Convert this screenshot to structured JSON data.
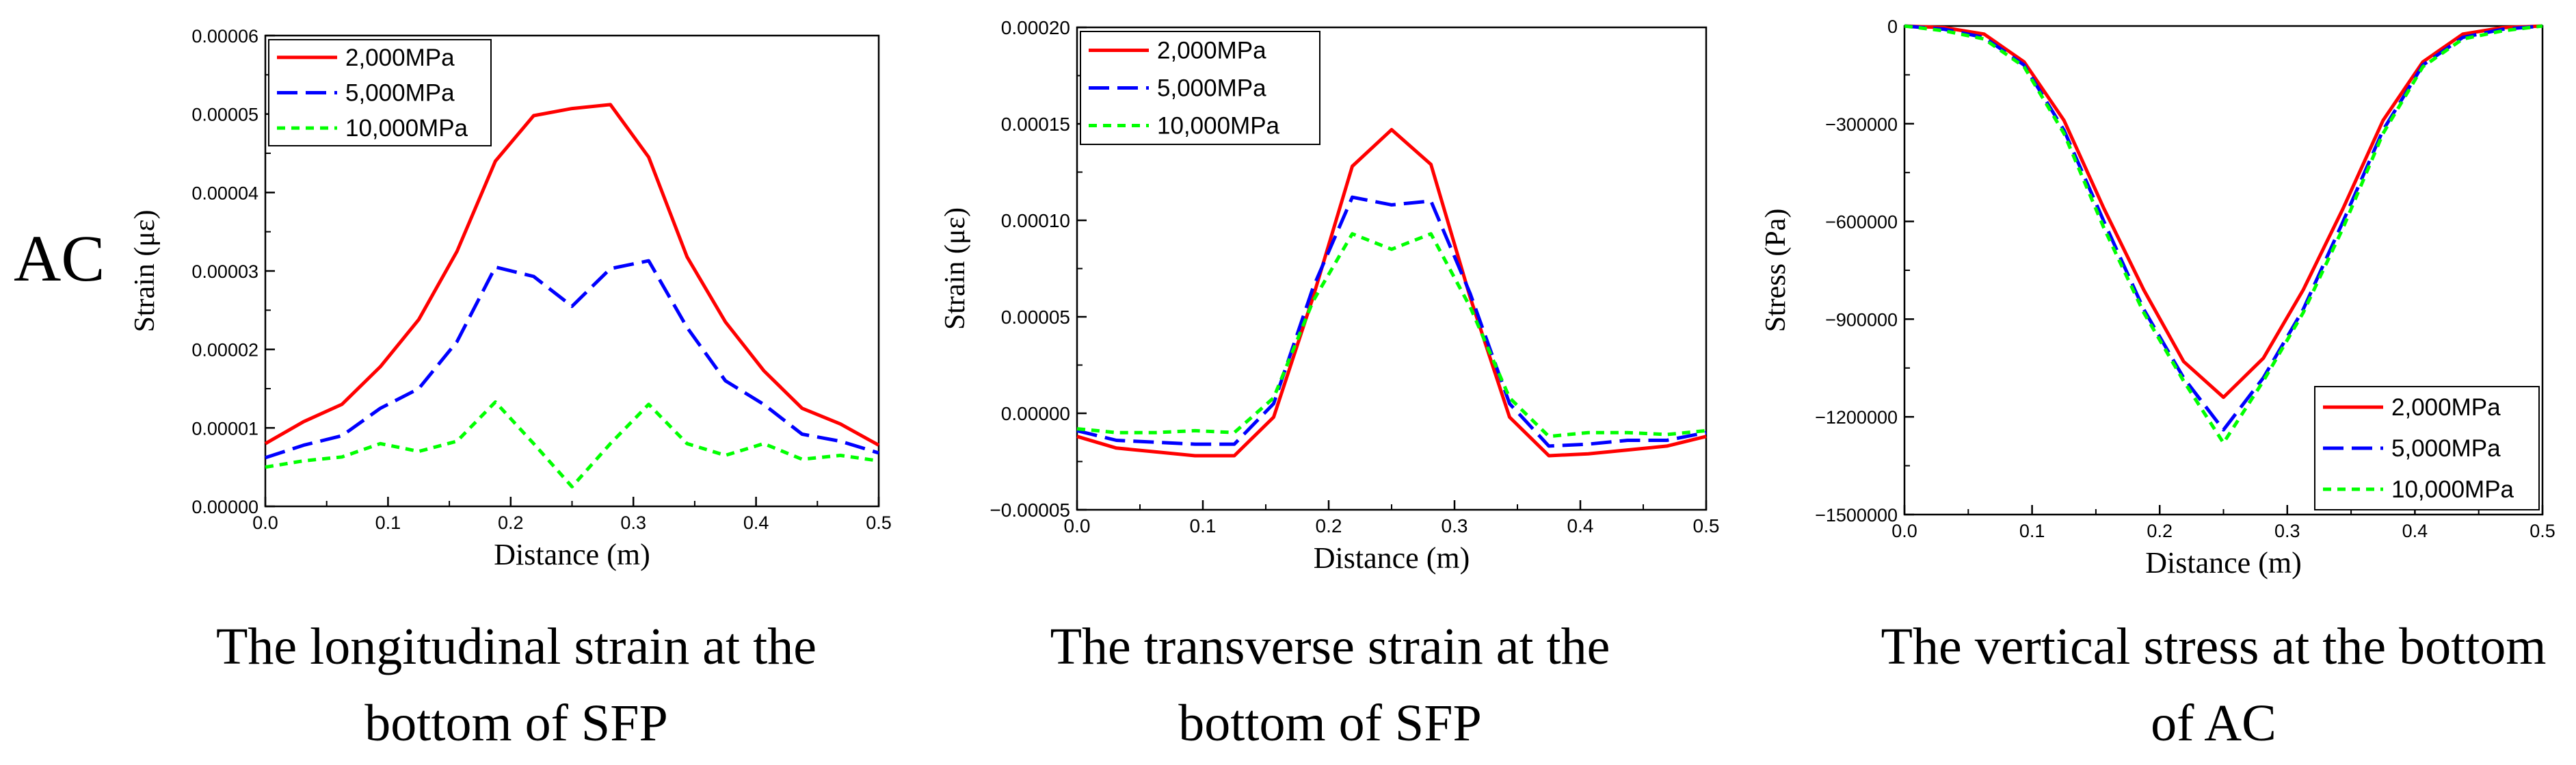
{
  "row_label": "AC",
  "chart_data": [
    {
      "type": "line",
      "title": "",
      "caption": [
        "The longitudinal strain at the",
        "bottom of SFP"
      ],
      "xlabel": "Distance (m)",
      "ylabel": "Strain (με)",
      "xlim": [
        0,
        0.5
      ],
      "ylim": [
        0,
        6e-05
      ],
      "xticks": [
        0.0,
        0.1,
        0.2,
        0.3,
        0.4,
        0.5
      ],
      "xtick_labels": [
        "0.0",
        "0.1",
        "0.2",
        "0.3",
        "0.4",
        "0.5"
      ],
      "yticks": [
        0,
        1e-05,
        2e-05,
        3e-05,
        4e-05,
        5e-05,
        6e-05
      ],
      "ytick_labels": [
        "0.00000",
        "0.00001",
        "0.00002",
        "0.00003",
        "0.00004",
        "0.00005",
        "0.00006"
      ],
      "legend_position": "top-left",
      "x": [
        0.0,
        0.03125,
        0.0625,
        0.09375,
        0.125,
        0.15625,
        0.1875,
        0.21875,
        0.25,
        0.28125,
        0.3125,
        0.34375,
        0.375,
        0.40625,
        0.4375,
        0.46875,
        0.5
      ],
      "series": [
        {
          "name": "2,000MPa",
          "color": "#ff0000",
          "dash": "solid",
          "values": [
            8e-06,
            1.08e-05,
            1.3e-05,
            1.78e-05,
            2.38e-05,
            3.25e-05,
            4.4e-05,
            4.98e-05,
            5.07e-05,
            5.12e-05,
            4.45e-05,
            3.18e-05,
            2.35e-05,
            1.73e-05,
            1.25e-05,
            1.05e-05,
            7.8e-06
          ]
        },
        {
          "name": "5,000MPa",
          "color": "#0000ff",
          "dash": "long",
          "values": [
            6.2e-06,
            7.8e-06,
            9e-06,
            1.25e-05,
            1.5e-05,
            2.1e-05,
            3.05e-05,
            2.93e-05,
            2.55e-05,
            3.03e-05,
            3.13e-05,
            2.28e-05,
            1.6e-05,
            1.3e-05,
            9.2e-06,
            8.3e-06,
            6.8e-06
          ]
        },
        {
          "name": "10,000MPa",
          "color": "#00ff00",
          "dash": "short",
          "values": [
            5e-06,
            5.8e-06,
            6.3e-06,
            8e-06,
            7e-06,
            8.3e-06,
            1.33e-05,
            8e-06,
            2.5e-06,
            8e-06,
            1.3e-05,
            8e-06,
            6.5e-06,
            8e-06,
            6e-06,
            6.5e-06,
            5.8e-06
          ]
        }
      ]
    },
    {
      "type": "line",
      "title": "",
      "caption": [
        "The transverse strain at the",
        "bottom of SFP"
      ],
      "xlabel": "Distance (m)",
      "ylabel": "Strain (με)",
      "xlim": [
        0,
        0.5
      ],
      "ylim": [
        -5e-05,
        0.0002
      ],
      "xticks": [
        0.0,
        0.1,
        0.2,
        0.3,
        0.4,
        0.5
      ],
      "xtick_labels": [
        "0.0",
        "0.1",
        "0.2",
        "0.3",
        "0.4",
        "0.5"
      ],
      "yticks": [
        -5e-05,
        0,
        5e-05,
        0.0001,
        0.00015,
        0.0002
      ],
      "ytick_labels": [
        "−0.00005",
        "0.00000",
        "0.00005",
        "0.00010",
        "0.00015",
        "0.00020"
      ],
      "legend_position": "top-left",
      "x": [
        0.0,
        0.03125,
        0.0625,
        0.09375,
        0.125,
        0.15625,
        0.1875,
        0.21875,
        0.25,
        0.28125,
        0.3125,
        0.34375,
        0.375,
        0.40625,
        0.4375,
        0.46875,
        0.5
      ],
      "series": [
        {
          "name": "2,000MPa",
          "color": "#ff0000",
          "dash": "solid",
          "values": [
            -1.2e-05,
            -1.8e-05,
            -2e-05,
            -2.2e-05,
            -2.2e-05,
            -2e-06,
            6e-05,
            0.000128,
            0.000147,
            0.000129,
            6e-05,
            -2e-06,
            -2.2e-05,
            -2.1e-05,
            -1.9e-05,
            -1.7e-05,
            -1.2e-05
          ]
        },
        {
          "name": "5,000MPa",
          "color": "#0000ff",
          "dash": "long",
          "values": [
            -9e-06,
            -1.4e-05,
            -1.5e-05,
            -1.6e-05,
            -1.6e-05,
            5e-06,
            6.5e-05,
            0.000112,
            0.000108,
            0.00011,
            6.2e-05,
            5e-06,
            -1.7e-05,
            -1.6e-05,
            -1.4e-05,
            -1.4e-05,
            -1e-05
          ]
        },
        {
          "name": "10,000MPa",
          "color": "#00ff00",
          "dash": "short",
          "values": [
            -8e-06,
            -1e-05,
            -1e-05,
            -9e-06,
            -1e-05,
            8e-06,
            5.8e-05,
            9.3e-05,
            8.5e-05,
            9.3e-05,
            5.5e-05,
            8e-06,
            -1.2e-05,
            -1e-05,
            -1e-05,
            -1.1e-05,
            -9e-06
          ]
        }
      ]
    },
    {
      "type": "line",
      "title": "",
      "caption": [
        "The vertical stress at the bottom",
        "of AC"
      ],
      "xlabel": "Distance (m)",
      "ylabel": "Stress (Pa)",
      "xlim": [
        0,
        0.5
      ],
      "ylim": [
        -1500000,
        0
      ],
      "xticks": [
        0.0,
        0.1,
        0.2,
        0.3,
        0.4,
        0.5
      ],
      "xtick_labels": [
        "0.0",
        "0.1",
        "0.2",
        "0.3",
        "0.4",
        "0.5"
      ],
      "yticks": [
        -1500000,
        -1200000,
        -900000,
        -600000,
        -300000,
        0
      ],
      "ytick_labels": [
        "−1500000",
        "−1200000",
        "−900000",
        "−600000",
        "−300000",
        "0"
      ],
      "legend_position": "bottom-right",
      "x": [
        0.0,
        0.03125,
        0.0625,
        0.09375,
        0.125,
        0.15625,
        0.1875,
        0.21875,
        0.25,
        0.28125,
        0.3125,
        0.34375,
        0.375,
        0.40625,
        0.4375,
        0.46875,
        0.5
      ],
      "series": [
        {
          "name": "2,000MPa",
          "color": "#ff0000",
          "dash": "solid",
          "values": [
            0,
            -5000,
            -25000,
            -110000,
            -290000,
            -560000,
            -810000,
            -1030000,
            -1140000,
            -1020000,
            -810000,
            -560000,
            -290000,
            -110000,
            -25000,
            -5000,
            0
          ]
        },
        {
          "name": "5,000MPa",
          "color": "#0000ff",
          "dash": "long",
          "values": [
            0,
            -10000,
            -35000,
            -120000,
            -320000,
            -600000,
            -870000,
            -1080000,
            -1240000,
            -1080000,
            -870000,
            -600000,
            -320000,
            -120000,
            -35000,
            -10000,
            0
          ]
        },
        {
          "name": "10,000MPa",
          "color": "#00ff00",
          "dash": "short",
          "values": [
            0,
            -15000,
            -40000,
            -125000,
            -330000,
            -620000,
            -880000,
            -1090000,
            -1280000,
            -1090000,
            -880000,
            -620000,
            -330000,
            -125000,
            -40000,
            -15000,
            0
          ]
        }
      ]
    }
  ]
}
